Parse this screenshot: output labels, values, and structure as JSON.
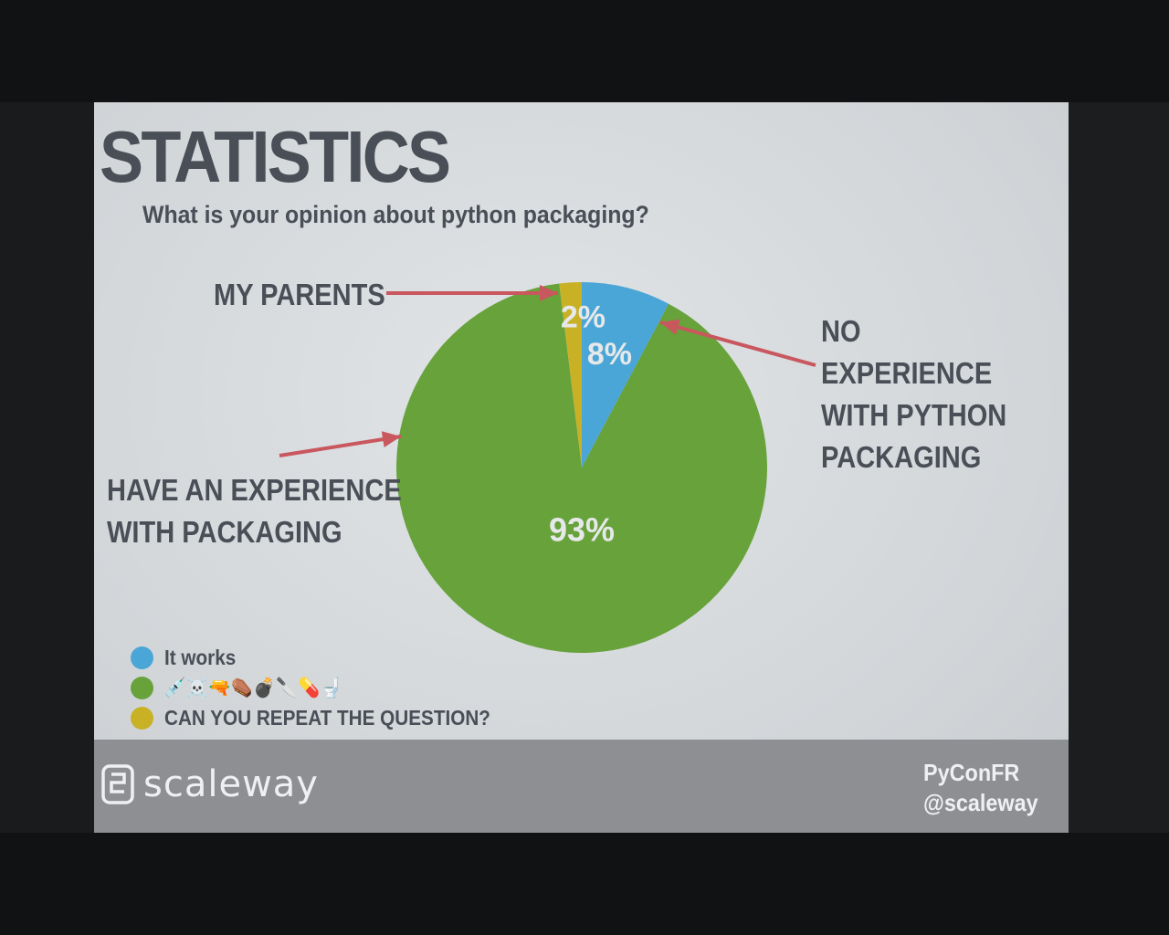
{
  "slide": {
    "title": "STATISTICS",
    "subtitle": "What is your opinion about python packaging?"
  },
  "callouts": {
    "my_parents": "MY PARENTS",
    "no_experience": [
      "NO EXPERIENCE",
      "WITH PYTHON",
      "PACKAGING"
    ],
    "have_experience": [
      "HAVE AN EXPERIENCE",
      "WITH PACKAGING"
    ]
  },
  "chart_data": {
    "type": "pie",
    "slices": [
      {
        "legend": "It works",
        "value": 8,
        "label": "8%",
        "color": "#4aa6d6"
      },
      {
        "legend": "💉☠️🔫⚰️💣🔪💊🚽",
        "value": 93,
        "label": "93%",
        "color": "#67a23b"
      },
      {
        "legend": "CAN YOU REPEAT THE QUESTION?",
        "value": 2,
        "label": "2%",
        "color": "#c9b126"
      }
    ],
    "legend_position": "bottom-left",
    "arrow_color": "#c9575e"
  },
  "footer": {
    "brand": "scaleway",
    "event": "PyConFR",
    "handle": "@scaleway"
  }
}
